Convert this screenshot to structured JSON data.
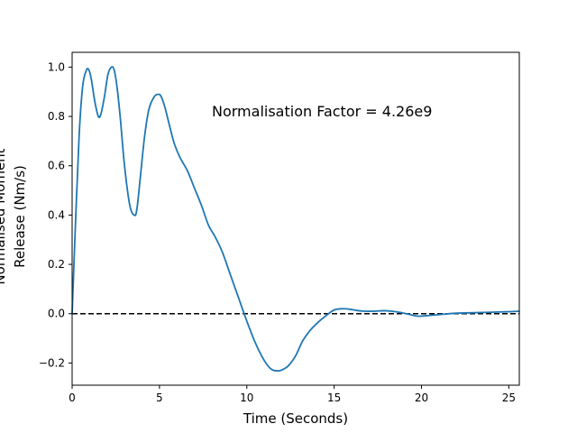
{
  "chart_data": {
    "type": "line",
    "xlabel": "Time (Seconds)",
    "ylabel_lines": [
      "Normalised Moment",
      "Release (Nm/s)"
    ],
    "annotation": "Normalisation Factor = 4.26e9",
    "xlim": [
      0,
      25.6
    ],
    "ylim": [
      -0.29,
      1.06
    ],
    "xticks": [
      0,
      5,
      10,
      15,
      20,
      25
    ],
    "yticks": [
      -0.2,
      0.0,
      0.2,
      0.4,
      0.6,
      0.8,
      1.0
    ],
    "xtick_labels": [
      "0",
      "5",
      "10",
      "15",
      "20",
      "25"
    ],
    "ytick_labels": [
      "−0.2",
      "0.0",
      "0.2",
      "0.4",
      "0.6",
      "0.8",
      "1.0"
    ],
    "grid": false,
    "reference_line": {
      "y": 0.0,
      "style": "dashed",
      "color": "#000000"
    },
    "series": [
      {
        "color": "#1f77b4",
        "x": [
          0,
          0.2,
          0.4,
          0.6,
          0.8,
          0.95,
          1.1,
          1.3,
          1.5,
          1.65,
          1.85,
          2.05,
          2.25,
          2.4,
          2.55,
          2.75,
          3.0,
          3.3,
          3.55,
          3.7,
          3.9,
          4.15,
          4.4,
          4.7,
          4.95,
          5.1,
          5.3,
          5.55,
          5.85,
          6.2,
          6.6,
          7.0,
          7.4,
          7.8,
          8.2,
          8.6,
          9.0,
          9.5,
          10.0,
          10.5,
          11.0,
          11.4,
          11.8,
          12.1,
          12.4,
          12.8,
          13.2,
          13.6,
          14.0,
          14.5,
          15.0,
          15.5,
          16.0,
          16.4,
          16.8,
          17.3,
          17.8,
          18.3,
          18.8,
          19.3,
          19.8,
          20.3,
          20.8,
          21.3,
          22.0,
          23.0,
          24.0,
          25.0,
          25.6
        ],
        "y": [
          0.0,
          0.38,
          0.72,
          0.92,
          0.985,
          0.99,
          0.95,
          0.86,
          0.8,
          0.81,
          0.88,
          0.97,
          1.0,
          0.99,
          0.93,
          0.8,
          0.6,
          0.44,
          0.4,
          0.42,
          0.55,
          0.72,
          0.83,
          0.88,
          0.89,
          0.88,
          0.84,
          0.77,
          0.69,
          0.63,
          0.58,
          0.51,
          0.44,
          0.36,
          0.31,
          0.25,
          0.17,
          0.07,
          -0.03,
          -0.12,
          -0.19,
          -0.225,
          -0.232,
          -0.225,
          -0.21,
          -0.17,
          -0.11,
          -0.07,
          -0.04,
          -0.01,
          0.015,
          0.02,
          0.017,
          0.012,
          0.01,
          0.01,
          0.012,
          0.01,
          0.005,
          -0.003,
          -0.01,
          -0.008,
          -0.005,
          -0.002,
          0.002,
          0.004,
          0.006,
          0.008,
          0.01
        ]
      }
    ]
  }
}
